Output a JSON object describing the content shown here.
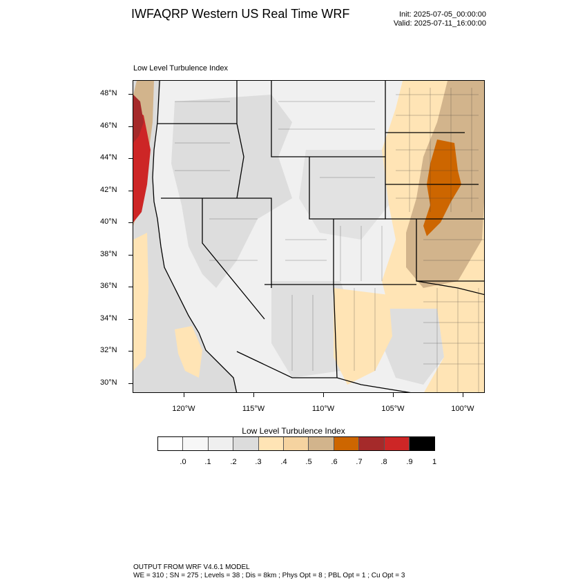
{
  "header": {
    "title": "IWFAQRP Western US Real Time WRF",
    "init": "Init: 2025-07-05_00:00:00",
    "valid": "Valid: 2025-07-11_16:00:00"
  },
  "map": {
    "field_label": "Low Level Turbulence Index",
    "lat_labels": [
      "48°N",
      "46°N",
      "44°N",
      "42°N",
      "40°N",
      "38°N",
      "36°N",
      "34°N",
      "32°N",
      "30°N"
    ],
    "lon_labels": [
      "120°W",
      "115°W",
      "110°W",
      "105°W",
      "100°W"
    ],
    "ocean_color": "#dcdcdc",
    "land_base_color": "#f0f0f0",
    "boundary_color": "#000000"
  },
  "colorbar": {
    "title": "Low Level Turbulence Index",
    "labels": [
      ".0",
      ".1",
      ".2",
      ".3",
      ".4",
      ".5",
      ".6",
      ".7",
      ".8",
      ".9",
      "1"
    ],
    "colors": [
      "#ffffff",
      "#f7f7f7",
      "#efefef",
      "#dcdcdc",
      "#ffe4b5",
      "#f5d3a0",
      "#d2b48c",
      "#cd6600",
      "#a52a2a",
      "#cd2626",
      "#000000"
    ]
  },
  "footer": {
    "line1": "OUTPUT FROM WRF V4.6.1 MODEL",
    "line2": "WE = 310 ; SN = 275 ; Levels = 38 ; Dis = 8km ; Phys Opt = 8 ; PBL Opt = 1 ; Cu Opt = 3"
  }
}
